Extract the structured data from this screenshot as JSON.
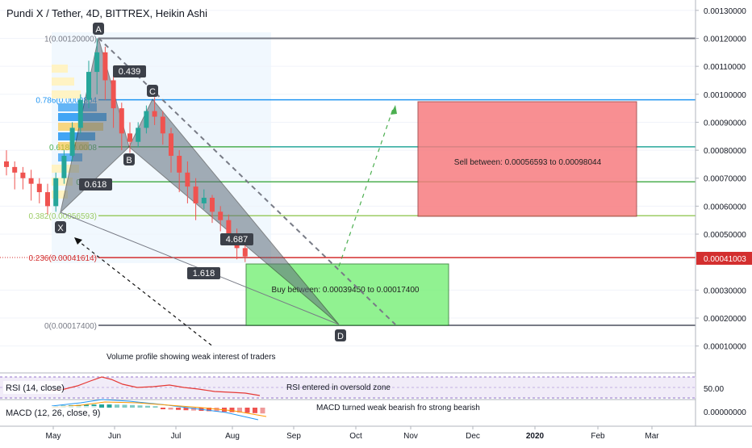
{
  "header": {
    "title": "Pundi X / Tether, 4D, BITTREX, Heikin Ashi"
  },
  "price_axis": {
    "ticks": [
      "0.00130000",
      "0.00120000",
      "0.00110000",
      "0.00100000",
      "0.00090000",
      "0.00080000",
      "0.00070000",
      "0.00060000",
      "0.00050000",
      "0.00030000",
      "0.00020000",
      "0.00010000"
    ],
    "current_price_label": "0.00041003",
    "rsi_tick": "50.00",
    "macd_tick": "0.00000000"
  },
  "time_axis": {
    "labels": [
      "May",
      "Jun",
      "Jul",
      "Aug",
      "Sep",
      "Oct",
      "Nov",
      "Dec",
      "2020",
      "Feb",
      "Mar"
    ]
  },
  "colors": {
    "up_candle": "#26a69a",
    "down_candle": "#ef5350",
    "sell_zone": "#f77c80",
    "buy_zone": "#7ef07e",
    "price_line": "#d32f2f",
    "fib_786": "#2196f3",
    "fib_618": "#4caf50",
    "fib_5": "#4caf50",
    "fib_382": "#9ccc65",
    "fib_236": "#d32f2f",
    "fib_1": "#787b86",
    "fib_0": "#787b86"
  },
  "fib_levels": [
    {
      "key": "1",
      "label": "1(0.00120000)",
      "price": 0.0012
    },
    {
      "key": "786",
      "label": "0.786(0.0009804",
      "price": 0.0009804
    },
    {
      "key": "618",
      "label": "0.618(0.0008",
      "price": 0.000812
    },
    {
      "key": "5",
      "label": "0.5(0.",
      "price": 0.000687
    },
    {
      "key": "382",
      "label": "0.382(0.00056593)",
      "price": 0.00056593
    },
    {
      "key": "236",
      "label": "0.236(0.00041614)",
      "price": 0.00041614
    },
    {
      "key": "0",
      "label": "0(0.00017400)",
      "price": 0.000174
    }
  ],
  "pattern": {
    "point_labels": [
      "A",
      "B",
      "C",
      "D",
      "X"
    ],
    "ratios": [
      "0.439",
      "0.618",
      "4.687",
      "1.618"
    ]
  },
  "annotations": {
    "sell_zone_text": "Sell between: 0.00056593 to 0.00098044",
    "buy_zone_text": "Buy between: 0.00039450 to 0.00017400",
    "volume_note": "Volume profile showing weak interest of traders",
    "rsi_note": "RSI entered in oversold zone",
    "macd_note": "MACD turned weak bearish fro strong bearish"
  },
  "indicators": {
    "rsi_label": "RSI (14, close)",
    "macd_label": "MACD (12, 26, close, 9)"
  },
  "chart_data": {
    "type": "candlestick",
    "title": "Pundi X / Tether, 4D, BITTREX, Heikin Ashi",
    "y_range": [
      0.0,
      0.00135
    ],
    "x_labels": [
      "May",
      "Jun",
      "Jul",
      "Aug",
      "Sep",
      "Oct",
      "Nov",
      "Dec",
      "2020",
      "Feb",
      "Mar"
    ],
    "candles": [
      {
        "o": 0.00076,
        "h": 0.0008,
        "c": 0.00074,
        "l": 0.00071
      },
      {
        "o": 0.00074,
        "h": 0.00076,
        "c": 0.00072,
        "l": 0.00066
      },
      {
        "o": 0.00072,
        "h": 0.00074,
        "c": 0.0007,
        "l": 0.00066
      },
      {
        "o": 0.0007,
        "h": 0.00073,
        "c": 0.00068,
        "l": 0.00062
      },
      {
        "o": 0.00068,
        "h": 0.0007,
        "c": 0.00065,
        "l": 0.00061
      },
      {
        "o": 0.00065,
        "h": 0.00068,
        "c": 0.0006,
        "l": 0.00057
      },
      {
        "o": 0.0006,
        "h": 0.00072,
        "c": 0.0007,
        "l": 0.00058
      },
      {
        "o": 0.0007,
        "h": 0.0008,
        "c": 0.00078,
        "l": 0.00068
      },
      {
        "o": 0.00078,
        "h": 0.0009,
        "c": 0.00088,
        "l": 0.00076
      },
      {
        "o": 0.00088,
        "h": 0.001,
        "c": 0.00098,
        "l": 0.00086
      },
      {
        "o": 0.00098,
        "h": 0.00112,
        "c": 0.00108,
        "l": 0.00095
      },
      {
        "o": 0.00108,
        "h": 0.0012,
        "c": 0.00115,
        "l": 0.001
      },
      {
        "o": 0.00115,
        "h": 0.00117,
        "c": 0.00105,
        "l": 0.00098
      },
      {
        "o": 0.00105,
        "h": 0.00108,
        "c": 0.00095,
        "l": 0.00088
      },
      {
        "o": 0.00095,
        "h": 0.00097,
        "c": 0.00086,
        "l": 0.0008
      },
      {
        "o": 0.00086,
        "h": 0.0009,
        "c": 0.00083,
        "l": 0.00079
      },
      {
        "o": 0.00083,
        "h": 0.0009,
        "c": 0.00088,
        "l": 0.00081
      },
      {
        "o": 0.00088,
        "h": 0.00096,
        "c": 0.00094,
        "l": 0.00086
      },
      {
        "o": 0.00094,
        "h": 0.00099,
        "c": 0.00092,
        "l": 0.00089
      },
      {
        "o": 0.00092,
        "h": 0.00094,
        "c": 0.00086,
        "l": 0.00082
      },
      {
        "o": 0.00086,
        "h": 0.00088,
        "c": 0.00078,
        "l": 0.00072
      },
      {
        "o": 0.00078,
        "h": 0.0008,
        "c": 0.00072,
        "l": 0.00065
      },
      {
        "o": 0.00072,
        "h": 0.00076,
        "c": 0.00067,
        "l": 0.00061
      },
      {
        "o": 0.00067,
        "h": 0.0007,
        "c": 0.00061,
        "l": 0.00055
      },
      {
        "o": 0.00061,
        "h": 0.00066,
        "c": 0.00063,
        "l": 0.00059
      },
      {
        "o": 0.00063,
        "h": 0.00064,
        "c": 0.00058,
        "l": 0.00054
      },
      {
        "o": 0.00058,
        "h": 0.0006,
        "c": 0.00055,
        "l": 0.00051
      },
      {
        "o": 0.00055,
        "h": 0.00057,
        "c": 0.0005,
        "l": 0.00046
      },
      {
        "o": 0.0005,
        "h": 0.00052,
        "c": 0.00045,
        "l": 0.00041
      },
      {
        "o": 0.00045,
        "h": 0.00047,
        "c": 0.00042,
        "l": 0.0004
      }
    ]
  }
}
